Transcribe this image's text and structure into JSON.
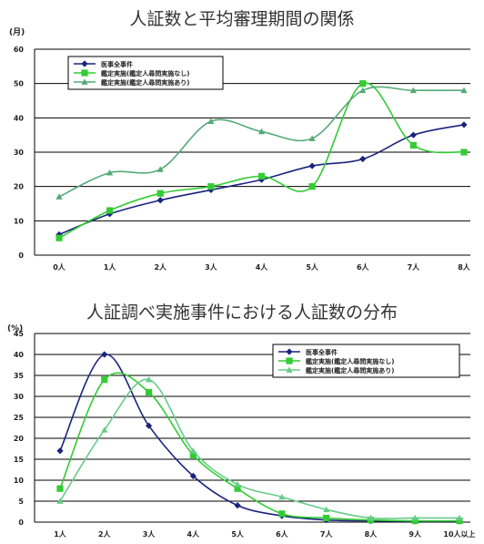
{
  "chart_data": [
    {
      "type": "line",
      "title": "人証数と平均審理期間の関係",
      "ylabel": "(月)",
      "ylim": [
        0,
        60
      ],
      "yticks": [
        "0",
        "10",
        "20",
        "30",
        "40",
        "50",
        "60"
      ],
      "categories": [
        "0人",
        "1人",
        "2人",
        "3人",
        "4人",
        "5人",
        "6人",
        "7人",
        "8人"
      ],
      "grid": true,
      "legend_position": "top-left",
      "series": [
        {
          "name": "医事全事件",
          "color": "#1a237e",
          "marker": "diamond",
          "values": [
            6,
            12,
            16,
            19,
            22,
            26,
            28,
            35,
            38
          ]
        },
        {
          "name": "鑑定実施(鑑定人尋問実施なし)",
          "color": "#33cc33",
          "marker": "square",
          "values": [
            5,
            13,
            18,
            20,
            23,
            20,
            50,
            32,
            30
          ]
        },
        {
          "name": "鑑定実施(鑑定人尋問実施あり)",
          "color": "#55aa77",
          "marker": "triangle",
          "values": [
            17,
            24,
            25,
            39,
            36,
            34,
            48,
            48,
            48
          ]
        }
      ]
    },
    {
      "type": "line",
      "title": "人証調べ実施事件における人証数の分布",
      "ylabel": "(%)",
      "ylim": [
        0,
        45
      ],
      "yticks": [
        "0",
        "5",
        "10",
        "15",
        "20",
        "25",
        "30",
        "35",
        "40",
        "45"
      ],
      "categories": [
        "1人",
        "2人",
        "3人",
        "4人",
        "5人",
        "6人",
        "7人",
        "8人",
        "9人",
        "10人以上"
      ],
      "grid": true,
      "legend_position": "top-right",
      "series": [
        {
          "name": "医事全事件",
          "color": "#1a237e",
          "marker": "diamond",
          "values": [
            17,
            40,
            23,
            11,
            4,
            1.5,
            0.5,
            0.3,
            0.2,
            0.2
          ]
        },
        {
          "name": "鑑定実施(鑑定人尋問実施なし)",
          "color": "#33cc33",
          "marker": "square",
          "values": [
            8,
            34,
            31,
            16,
            8,
            2,
            1,
            0.5,
            0.3,
            0.3
          ]
        },
        {
          "name": "鑑定実施(鑑定人尋問実施あり)",
          "color": "#66cc88",
          "marker": "triangle",
          "values": [
            5,
            22,
            34,
            17,
            9,
            6,
            3,
            1,
            1,
            1
          ]
        }
      ]
    }
  ]
}
